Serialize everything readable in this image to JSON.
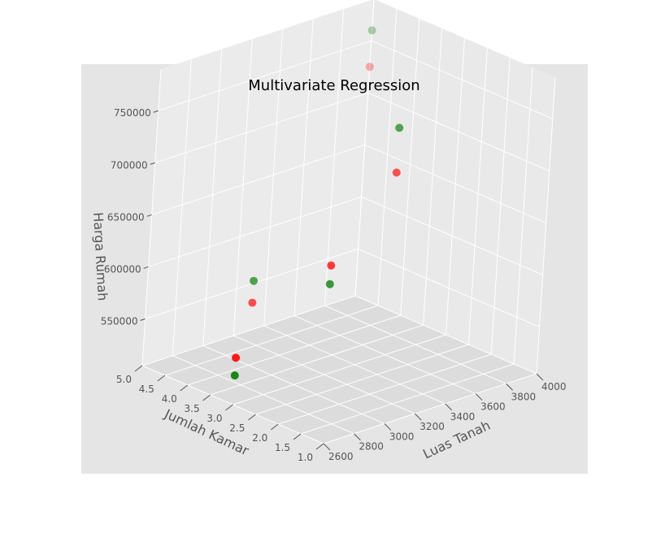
{
  "chart_data": {
    "type": "scatter",
    "projection": "3d",
    "title": "Multivariate Regression",
    "xlabel": "Luas Tanah",
    "ylabel": "Jumlah Kamar",
    "zlabel": "Harga Rumah",
    "xticks": [
      "2600",
      "2800",
      "3000",
      "3200",
      "3400",
      "3600",
      "3800",
      "4000"
    ],
    "yticks": [
      "1.0",
      "1.5",
      "2.0",
      "2.5",
      "3.0",
      "3.5",
      "4.0",
      "4.5",
      "5.0"
    ],
    "zticks": [
      "550000",
      "600000",
      "650000",
      "700000",
      "750000"
    ],
    "xlim": [
      2600,
      4000
    ],
    "ylim": [
      1.0,
      5.0
    ],
    "zlim": [
      505000,
      790000
    ],
    "grid": true,
    "series": [
      {
        "color": "#ff0000",
        "points": [
          {
            "x": 2600,
            "y": 3.0,
            "z": 550000
          },
          {
            "x": 3000,
            "y": 4.0,
            "z": 565000
          },
          {
            "x": 3200,
            "y": 3.0,
            "z": 610000
          },
          {
            "x": 3600,
            "y": 3.0,
            "z": 680000
          },
          {
            "x": 4000,
            "y": 5.0,
            "z": 725000
          }
        ]
      },
      {
        "color": "#007a00",
        "points": [
          {
            "x": 2600,
            "y": 3.0,
            "z": 533000
          },
          {
            "x": 3000,
            "y": 4.0,
            "z": 586000
          },
          {
            "x": 3200,
            "y": 3.0,
            "z": 592000
          },
          {
            "x": 3600,
            "y": 3.0,
            "z": 723000
          },
          {
            "x": 4000,
            "y": 5.0,
            "z": 760000
          }
        ]
      }
    ]
  }
}
